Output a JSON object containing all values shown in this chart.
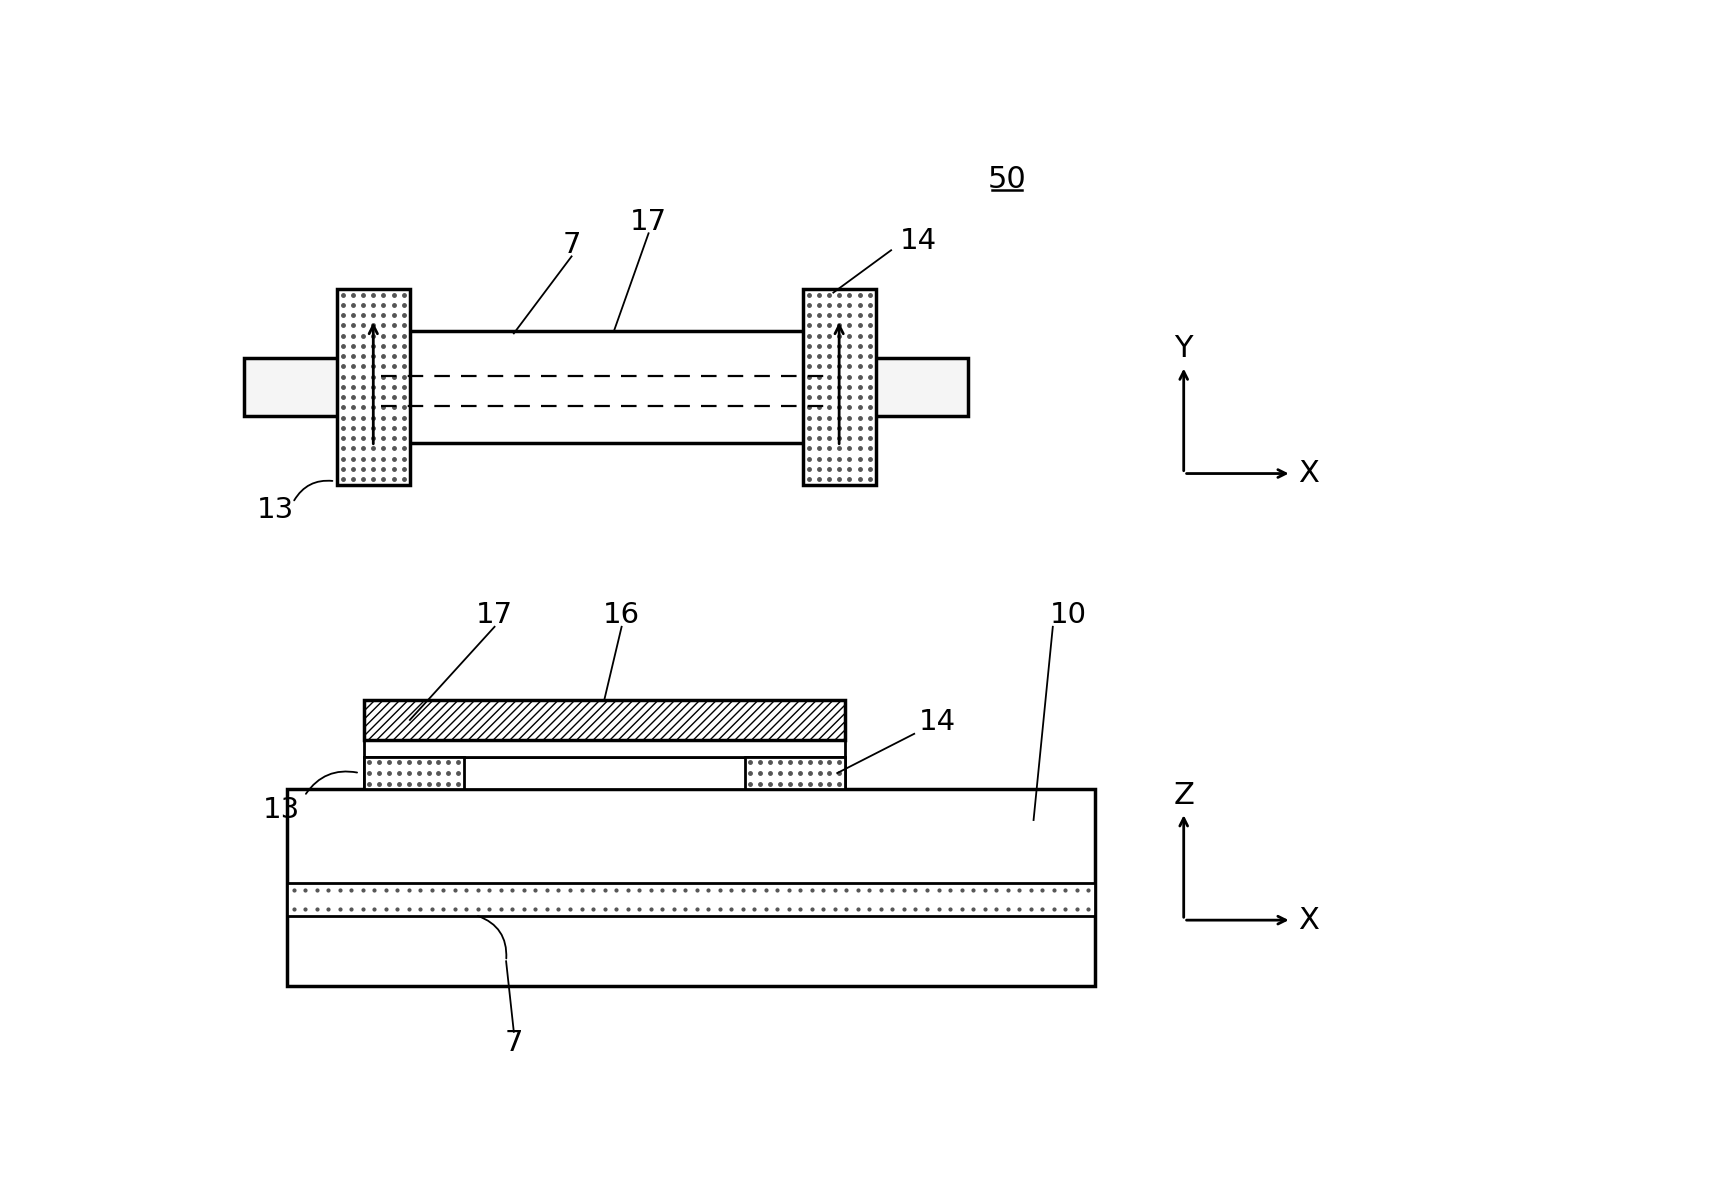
{
  "bg_color": "#ffffff",
  "line_color": "#000000",
  "label_50": "50",
  "label_7_top": "7",
  "label_17_top": "17",
  "label_14_top": "14",
  "label_13_top": "13",
  "label_17_bot": "17",
  "label_16_bot": "16",
  "label_10_bot": "10",
  "label_13_bot": "13",
  "label_14_bot": "14",
  "label_7_bot": "7",
  "axis_y_label": "Y",
  "axis_x_label_top": "X",
  "axis_z_label": "Z",
  "axis_x_label_bot": "X"
}
